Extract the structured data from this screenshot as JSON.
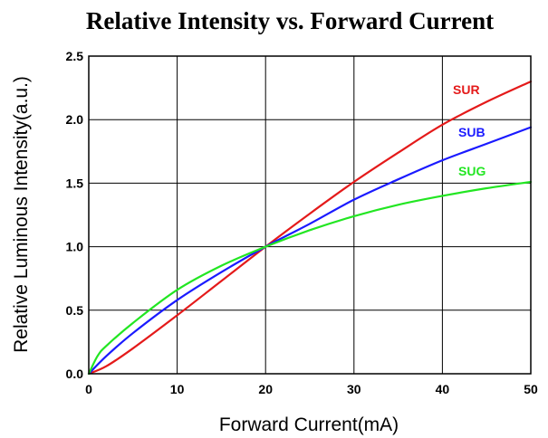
{
  "chart_data": {
    "type": "line",
    "title": "Relative Intensity vs. Forward Current",
    "xlabel": "Forward Current(mA)",
    "ylabel": "Relative Luminous Intensity(a.u.)",
    "xlim": [
      0,
      50
    ],
    "ylim": [
      0,
      2.5
    ],
    "xticks": [
      0,
      10,
      20,
      30,
      40,
      50
    ],
    "xtick_labels": [
      "0",
      "10",
      "20",
      "30",
      "40",
      "50"
    ],
    "yticks": [
      0,
      0.5,
      1.0,
      1.5,
      2.0,
      2.5
    ],
    "ytick_labels": [
      "0.0",
      "0.5",
      "1.0",
      "1.5",
      "2.0",
      "2.5"
    ],
    "grid": true,
    "series": [
      {
        "name": "SUR",
        "color": "#e41a1a",
        "x": [
          0,
          2,
          5,
          10,
          15,
          20,
          25,
          30,
          35,
          40,
          45,
          50
        ],
        "y": [
          0,
          0.06,
          0.2,
          0.46,
          0.73,
          1.0,
          1.26,
          1.51,
          1.74,
          1.96,
          2.14,
          2.3
        ]
      },
      {
        "name": "SUB",
        "color": "#1a1aff",
        "x": [
          0,
          2,
          5,
          10,
          15,
          20,
          25,
          30,
          35,
          40,
          45,
          50
        ],
        "y": [
          0,
          0.14,
          0.32,
          0.58,
          0.8,
          1.0,
          1.18,
          1.37,
          1.53,
          1.68,
          1.81,
          1.94
        ]
      },
      {
        "name": "SUG",
        "color": "#22e622",
        "x": [
          0,
          1,
          2,
          5,
          10,
          15,
          20,
          25,
          30,
          35,
          40,
          45,
          50
        ],
        "y": [
          0,
          0.14,
          0.22,
          0.4,
          0.66,
          0.85,
          1.0,
          1.13,
          1.24,
          1.33,
          1.4,
          1.46,
          1.51
        ]
      }
    ]
  }
}
